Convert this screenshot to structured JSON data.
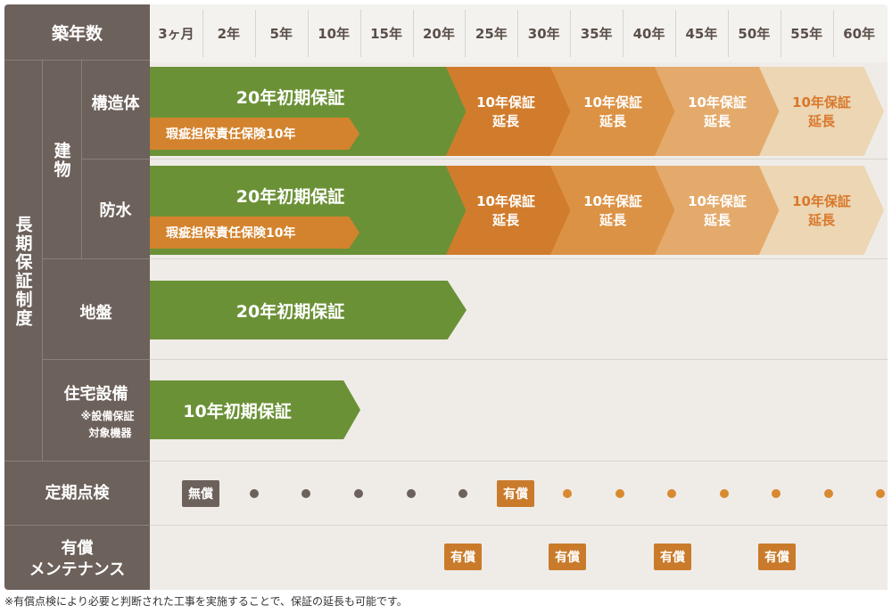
{
  "header": {
    "corner_label": "築年数",
    "ticks": [
      "3ヶ月",
      "2年",
      "5年",
      "10年",
      "15年",
      "20年",
      "25年",
      "30年",
      "35年",
      "40年",
      "45年",
      "50年",
      "55年",
      "60年"
    ]
  },
  "left": {
    "system_label": "長期保証制度",
    "building_label": "建物",
    "structure_label": "構造体",
    "waterproof_label": "防水",
    "ground_label": "地盤",
    "equipment_label": "住宅設備",
    "equipment_note_line1": "※設備保証",
    "equipment_note_line2": "対象機器",
    "inspection_label": "定期点検",
    "maintenance_line1": "有償",
    "maintenance_line2": "メンテナンス"
  },
  "rows": {
    "structure": {
      "initial": "20年初期保証",
      "insurance": "瑕疵担保責任保険10年",
      "extensions": [
        {
          "line1": "10年保証",
          "line2": "延長"
        },
        {
          "line1": "10年保証",
          "line2": "延長"
        },
        {
          "line1": "10年保証",
          "line2": "延長"
        },
        {
          "line1": "10年保証",
          "line2": "延長"
        }
      ]
    },
    "waterproof": {
      "initial": "20年初期保証",
      "insurance": "瑕疵担保責任保険10年",
      "extensions": [
        {
          "line1": "10年保証",
          "line2": "延長"
        },
        {
          "line1": "10年保証",
          "line2": "延長"
        },
        {
          "line1": "10年保証",
          "line2": "延長"
        },
        {
          "line1": "10年保証",
          "line2": "延長"
        }
      ]
    },
    "ground": {
      "initial": "20年初期保証"
    },
    "equipment": {
      "initial": "10年初期保証"
    },
    "inspection": {
      "free_badge": "無償",
      "paid_badge": "有償"
    },
    "maintenance": {
      "badges": [
        "有償",
        "有償",
        "有償",
        "有償"
      ]
    }
  },
  "colors": {
    "green": "#6b9136",
    "orange": "#d17c2c",
    "grey_dark": "#6d615b",
    "dot_grey": "#6d615b",
    "dot_orange": "#d9892f"
  },
  "footnote": "※有償点検により必要と判断された工事を実施することで、保証の延長も可能です。"
}
